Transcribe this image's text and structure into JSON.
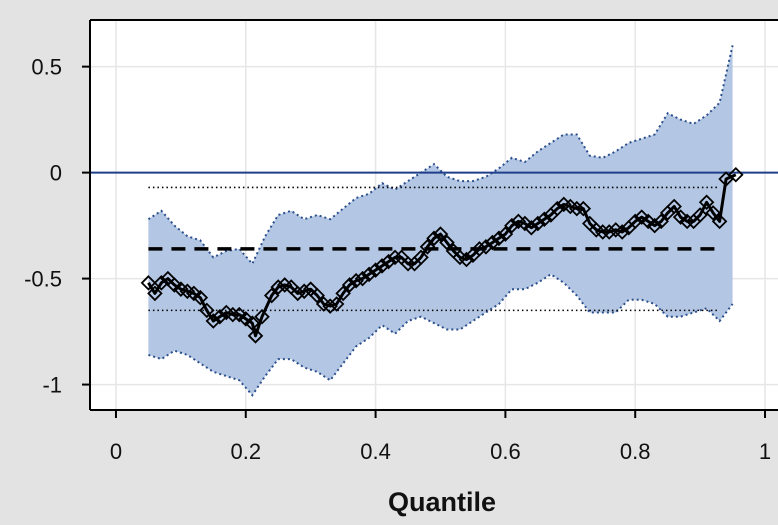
{
  "chart_data": {
    "type": "line",
    "xlabel": "Quantile",
    "ylabel": "",
    "xlim": [
      -0.04,
      1.02
    ],
    "ylim": [
      -1.12,
      0.72
    ],
    "grid": true,
    "x_ticks": [
      0,
      0.2,
      0.4,
      0.6,
      0.8,
      1
    ],
    "x_tick_labels": [
      "0",
      "0.2",
      "0.4",
      "0.6",
      "0.8",
      "1"
    ],
    "y_ticks": [
      0.5,
      0,
      -0.5,
      -1
    ],
    "y_tick_labels": [
      "0.5",
      "0",
      "-0.5",
      "-1"
    ],
    "colors": {
      "band_fill": "#b3c6e3",
      "band_edge": "#2b4f8c",
      "zero_line": "#1f3f8a",
      "estimate": "#000000",
      "grid": "#e6e6e6"
    },
    "reference_lines": {
      "zero": 0,
      "dashed_mean": -0.36,
      "dotted_upper": -0.07,
      "dotted_lower": -0.65,
      "span": [
        0.05,
        0.93
      ]
    },
    "band_upper": [
      [
        0.05,
        -0.22
      ],
      [
        0.07,
        -0.18
      ],
      [
        0.09,
        -0.25
      ],
      [
        0.11,
        -0.3
      ],
      [
        0.13,
        -0.32
      ],
      [
        0.15,
        -0.4
      ],
      [
        0.17,
        -0.37
      ],
      [
        0.19,
        -0.36
      ],
      [
        0.21,
        -0.43
      ],
      [
        0.23,
        -0.3
      ],
      [
        0.25,
        -0.2
      ],
      [
        0.27,
        -0.18
      ],
      [
        0.29,
        -0.22
      ],
      [
        0.31,
        -0.2
      ],
      [
        0.33,
        -0.22
      ],
      [
        0.35,
        -0.17
      ],
      [
        0.37,
        -0.12
      ],
      [
        0.39,
        -0.1
      ],
      [
        0.41,
        -0.05
      ],
      [
        0.43,
        -0.08
      ],
      [
        0.45,
        -0.04
      ],
      [
        0.47,
        0.0
      ],
      [
        0.49,
        0.04
      ],
      [
        0.51,
        -0.02
      ],
      [
        0.53,
        -0.04
      ],
      [
        0.55,
        -0.04
      ],
      [
        0.57,
        -0.02
      ],
      [
        0.59,
        0.02
      ],
      [
        0.61,
        0.07
      ],
      [
        0.63,
        0.05
      ],
      [
        0.65,
        0.1
      ],
      [
        0.67,
        0.14
      ],
      [
        0.69,
        0.18
      ],
      [
        0.71,
        0.18
      ],
      [
        0.73,
        0.08
      ],
      [
        0.75,
        0.07
      ],
      [
        0.77,
        0.1
      ],
      [
        0.79,
        0.14
      ],
      [
        0.81,
        0.16
      ],
      [
        0.83,
        0.18
      ],
      [
        0.85,
        0.28
      ],
      [
        0.87,
        0.25
      ],
      [
        0.89,
        0.23
      ],
      [
        0.91,
        0.27
      ],
      [
        0.93,
        0.33
      ],
      [
        0.95,
        0.6
      ]
    ],
    "band_lower": [
      [
        0.05,
        -0.86
      ],
      [
        0.07,
        -0.88
      ],
      [
        0.09,
        -0.84
      ],
      [
        0.11,
        -0.86
      ],
      [
        0.13,
        -0.9
      ],
      [
        0.15,
        -0.94
      ],
      [
        0.17,
        -0.96
      ],
      [
        0.19,
        -0.98
      ],
      [
        0.21,
        -1.05
      ],
      [
        0.23,
        -0.96
      ],
      [
        0.25,
        -0.88
      ],
      [
        0.27,
        -0.88
      ],
      [
        0.29,
        -0.92
      ],
      [
        0.31,
        -0.94
      ],
      [
        0.33,
        -0.98
      ],
      [
        0.35,
        -0.9
      ],
      [
        0.37,
        -0.82
      ],
      [
        0.39,
        -0.78
      ],
      [
        0.41,
        -0.72
      ],
      [
        0.43,
        -0.76
      ],
      [
        0.45,
        -0.7
      ],
      [
        0.47,
        -0.68
      ],
      [
        0.49,
        -0.71
      ],
      [
        0.51,
        -0.74
      ],
      [
        0.53,
        -0.74
      ],
      [
        0.55,
        -0.7
      ],
      [
        0.57,
        -0.66
      ],
      [
        0.59,
        -0.62
      ],
      [
        0.61,
        -0.55
      ],
      [
        0.63,
        -0.55
      ],
      [
        0.65,
        -0.52
      ],
      [
        0.67,
        -0.48
      ],
      [
        0.69,
        -0.52
      ],
      [
        0.71,
        -0.58
      ],
      [
        0.73,
        -0.66
      ],
      [
        0.75,
        -0.66
      ],
      [
        0.77,
        -0.66
      ],
      [
        0.79,
        -0.6
      ],
      [
        0.81,
        -0.6
      ],
      [
        0.83,
        -0.62
      ],
      [
        0.85,
        -0.68
      ],
      [
        0.87,
        -0.68
      ],
      [
        0.89,
        -0.66
      ],
      [
        0.91,
        -0.64
      ],
      [
        0.93,
        -0.7
      ],
      [
        0.95,
        -0.62
      ]
    ],
    "series": [
      {
        "values": [
          [
            0.05,
            -0.52
          ],
          [
            0.06,
            -0.57
          ],
          [
            0.07,
            -0.52
          ],
          [
            0.08,
            -0.5
          ],
          [
            0.09,
            -0.53
          ],
          [
            0.1,
            -0.55
          ],
          [
            0.11,
            -0.56
          ],
          [
            0.12,
            -0.57
          ],
          [
            0.13,
            -0.59
          ],
          [
            0.14,
            -0.65
          ],
          [
            0.15,
            -0.7
          ],
          [
            0.16,
            -0.68
          ],
          [
            0.17,
            -0.66
          ],
          [
            0.18,
            -0.67
          ],
          [
            0.19,
            -0.67
          ],
          [
            0.2,
            -0.69
          ],
          [
            0.21,
            -0.71
          ],
          [
            0.215,
            -0.77
          ],
          [
            0.225,
            -0.68
          ],
          [
            0.24,
            -0.58
          ],
          [
            0.25,
            -0.54
          ],
          [
            0.26,
            -0.53
          ],
          [
            0.27,
            -0.54
          ],
          [
            0.28,
            -0.57
          ],
          [
            0.29,
            -0.56
          ],
          [
            0.3,
            -0.55
          ],
          [
            0.31,
            -0.58
          ],
          [
            0.32,
            -0.62
          ],
          [
            0.33,
            -0.63
          ],
          [
            0.34,
            -0.62
          ],
          [
            0.35,
            -0.57
          ],
          [
            0.36,
            -0.53
          ],
          [
            0.37,
            -0.51
          ],
          [
            0.38,
            -0.5
          ],
          [
            0.39,
            -0.48
          ],
          [
            0.4,
            -0.46
          ],
          [
            0.41,
            -0.44
          ],
          [
            0.42,
            -0.42
          ],
          [
            0.43,
            -0.4
          ],
          [
            0.44,
            -0.4
          ],
          [
            0.45,
            -0.43
          ],
          [
            0.46,
            -0.43
          ],
          [
            0.47,
            -0.4
          ],
          [
            0.48,
            -0.35
          ],
          [
            0.49,
            -0.31
          ],
          [
            0.5,
            -0.29
          ],
          [
            0.51,
            -0.33
          ],
          [
            0.52,
            -0.37
          ],
          [
            0.53,
            -0.4
          ],
          [
            0.54,
            -0.41
          ],
          [
            0.55,
            -0.39
          ],
          [
            0.56,
            -0.36
          ],
          [
            0.57,
            -0.35
          ],
          [
            0.58,
            -0.33
          ],
          [
            0.59,
            -0.31
          ],
          [
            0.6,
            -0.29
          ],
          [
            0.61,
            -0.25
          ],
          [
            0.62,
            -0.23
          ],
          [
            0.63,
            -0.24
          ],
          [
            0.64,
            -0.26
          ],
          [
            0.65,
            -0.24
          ],
          [
            0.66,
            -0.22
          ],
          [
            0.67,
            -0.2
          ],
          [
            0.68,
            -0.17
          ],
          [
            0.69,
            -0.15
          ],
          [
            0.7,
            -0.16
          ],
          [
            0.71,
            -0.17
          ],
          [
            0.72,
            -0.17
          ],
          [
            0.73,
            -0.24
          ],
          [
            0.74,
            -0.27
          ],
          [
            0.75,
            -0.28
          ],
          [
            0.76,
            -0.28
          ],
          [
            0.77,
            -0.27
          ],
          [
            0.78,
            -0.28
          ],
          [
            0.79,
            -0.26
          ],
          [
            0.8,
            -0.23
          ],
          [
            0.81,
            -0.21
          ],
          [
            0.82,
            -0.23
          ],
          [
            0.83,
            -0.25
          ],
          [
            0.84,
            -0.23
          ],
          [
            0.85,
            -0.19
          ],
          [
            0.86,
            -0.16
          ],
          [
            0.87,
            -0.21
          ],
          [
            0.88,
            -0.23
          ],
          [
            0.89,
            -0.23
          ],
          [
            0.9,
            -0.2
          ],
          [
            0.91,
            -0.14
          ],
          [
            0.92,
            -0.19
          ],
          [
            0.93,
            -0.23
          ],
          [
            0.94,
            -0.03
          ],
          [
            0.955,
            -0.01
          ]
        ]
      }
    ]
  }
}
